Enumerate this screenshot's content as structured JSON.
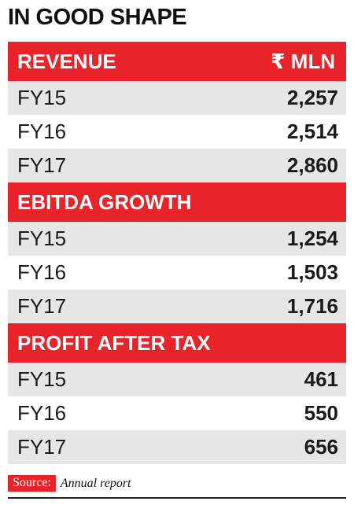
{
  "title": "IN GOOD SHAPE",
  "unit_label": "₹ MLN",
  "chart_data": {
    "type": "table",
    "title": "IN GOOD SHAPE",
    "unit": "₹ MLN",
    "sections": [
      {
        "name": "REVENUE",
        "rows": [
          {
            "year": "FY15",
            "value": "2,257"
          },
          {
            "year": "FY16",
            "value": "2,514"
          },
          {
            "year": "FY17",
            "value": "2,860"
          }
        ]
      },
      {
        "name": "EBITDA GROWTH",
        "rows": [
          {
            "year": "FY15",
            "value": "1,254"
          },
          {
            "year": "FY16",
            "value": "1,503"
          },
          {
            "year": "FY17",
            "value": "1,716"
          }
        ]
      },
      {
        "name": "PROFIT AFTER TAX",
        "rows": [
          {
            "year": "FY15",
            "value": "461"
          },
          {
            "year": "FY16",
            "value": "550"
          },
          {
            "year": "FY17",
            "value": "656"
          }
        ]
      }
    ]
  },
  "source": {
    "label": "Source:",
    "text": "Annual report"
  },
  "colors": {
    "accent": "#e8232a",
    "row_shade": "#e6e6e7"
  }
}
